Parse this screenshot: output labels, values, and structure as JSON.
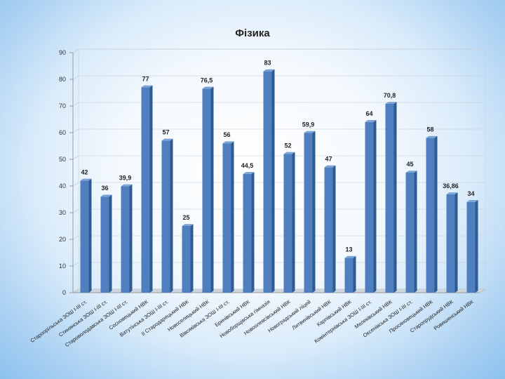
{
  "chart_data": {
    "type": "bar",
    "title": "Фізика",
    "xlabel": "",
    "ylabel": "",
    "ylim": [
      0,
      90
    ],
    "y_ticks": [
      0,
      10,
      20,
      30,
      40,
      50,
      60,
      70,
      80,
      90
    ],
    "grid": true,
    "legend": "none",
    "bar_color": "#4f7fbf",
    "categories": [
      "Староорільська ЗОШ I-III ст.",
      "Стинянська ЗОШ I-III ст.",
      "Староволодавська ЗОШ I-III ст.",
      "Сосновецький НВК",
      "Ватутінська ЗОШ I-III ст.",
      "ІІ Стародарецький НВК",
      "Новоселицький НВК",
      "Вівсяківська ЗОШ I-III ст.",
      "Бринівський НВК",
      "Новоборщівська гімназія",
      "Новоолевсівський НВК",
      "Новоградський ліцей",
      "Литвинівський НВК",
      "Карпівський НВК",
      "Комінтернівська ЗОШ I-III ст.",
      "Мелеківський НВК",
      "Оксенівська ЗОШ I-III ст.",
      "Просяновецький НВК",
      "Старопрудський НВК",
      "Ровишенський НВК"
    ],
    "values": [
      42,
      36,
      39.9,
      77,
      57,
      25,
      76.5,
      56,
      44.5,
      83,
      52,
      59.9,
      47,
      13,
      64,
      70.8,
      45,
      58,
      36.86,
      34
    ],
    "value_labels": [
      "42",
      "36",
      "39,9",
      "77",
      "57",
      "25",
      "76,5",
      "56",
      "44,5",
      "83",
      "52",
      "59,9",
      "47",
      "13",
      "64",
      "70,8",
      "45",
      "58",
      "36,86",
      "34"
    ]
  }
}
